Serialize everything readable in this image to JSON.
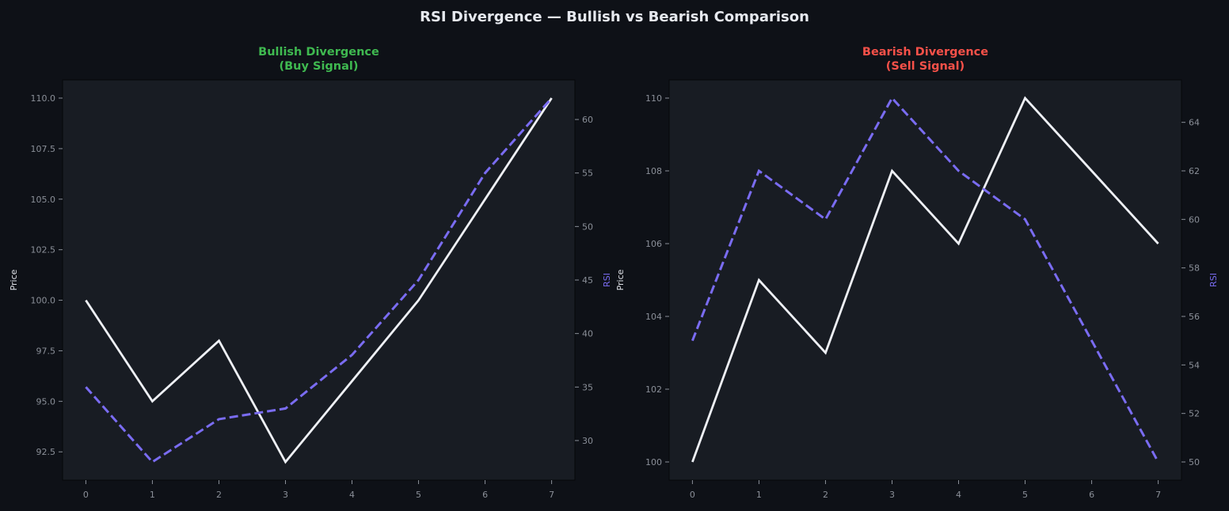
{
  "figure": {
    "title": "RSI Divergence — Bullish vs Bearish Comparison",
    "background": "#0e1117",
    "axes_background": "#181c23",
    "title_color": "#e6e9ef",
    "tick_color": "#8a8f98",
    "price_color": "#eef0f5",
    "rsi_color": "#7a6cf2"
  },
  "chart_data": [
    {
      "type": "line",
      "title_line1": "Bullish Divergence",
      "title_line2": "(Buy Signal)",
      "title_color": "#3fb950",
      "x": [
        0,
        1,
        2,
        3,
        4,
        5,
        6,
        7
      ],
      "x_ticks": [
        "0",
        "1",
        "2",
        "3",
        "4",
        "5",
        "6",
        "7"
      ],
      "xlim": [
        -0.35,
        7.35
      ],
      "ylabel_left": "Price",
      "ylabel_right": "RSI",
      "ylim_left": [
        91.1,
        110.9
      ],
      "ylim_right": [
        26.3,
        63.7
      ],
      "y_ticks_left": [
        "92.5",
        "95.0",
        "97.5",
        "100.0",
        "102.5",
        "105.0",
        "107.5",
        "110.0"
      ],
      "y_ticks_right": [
        "30",
        "35",
        "40",
        "45",
        "50",
        "55",
        "60"
      ],
      "grid": false,
      "series": [
        {
          "axis": "left",
          "style": "solid",
          "values": [
            100,
            95,
            98,
            92,
            96,
            100,
            105,
            110
          ]
        },
        {
          "axis": "right",
          "style": "dashed",
          "values": [
            35,
            28,
            32,
            33,
            38,
            45,
            55,
            62
          ]
        }
      ]
    },
    {
      "type": "line",
      "title_line1": "Bearish Divergence",
      "title_line2": "(Sell Signal)",
      "title_color": "#f85149",
      "x": [
        0,
        1,
        2,
        3,
        4,
        5,
        6,
        7
      ],
      "x_ticks": [
        "0",
        "1",
        "2",
        "3",
        "4",
        "5",
        "6",
        "7"
      ],
      "xlim": [
        -0.35,
        7.35
      ],
      "ylabel_left": "Price",
      "ylabel_right": "RSI",
      "ylim_left": [
        99.5,
        110.5
      ],
      "ylim_right": [
        49.25,
        65.75
      ],
      "y_ticks_left": [
        "100",
        "102",
        "104",
        "106",
        "108",
        "110"
      ],
      "y_ticks_right": [
        "50",
        "52",
        "54",
        "56",
        "58",
        "60",
        "62",
        "64"
      ],
      "grid": false,
      "series": [
        {
          "axis": "left",
          "style": "solid",
          "values": [
            100,
            105,
            103,
            108,
            106,
            110,
            108,
            106
          ]
        },
        {
          "axis": "right",
          "style": "dashed",
          "values": [
            55,
            62,
            60,
            65,
            62,
            60,
            55,
            50
          ]
        }
      ]
    }
  ]
}
